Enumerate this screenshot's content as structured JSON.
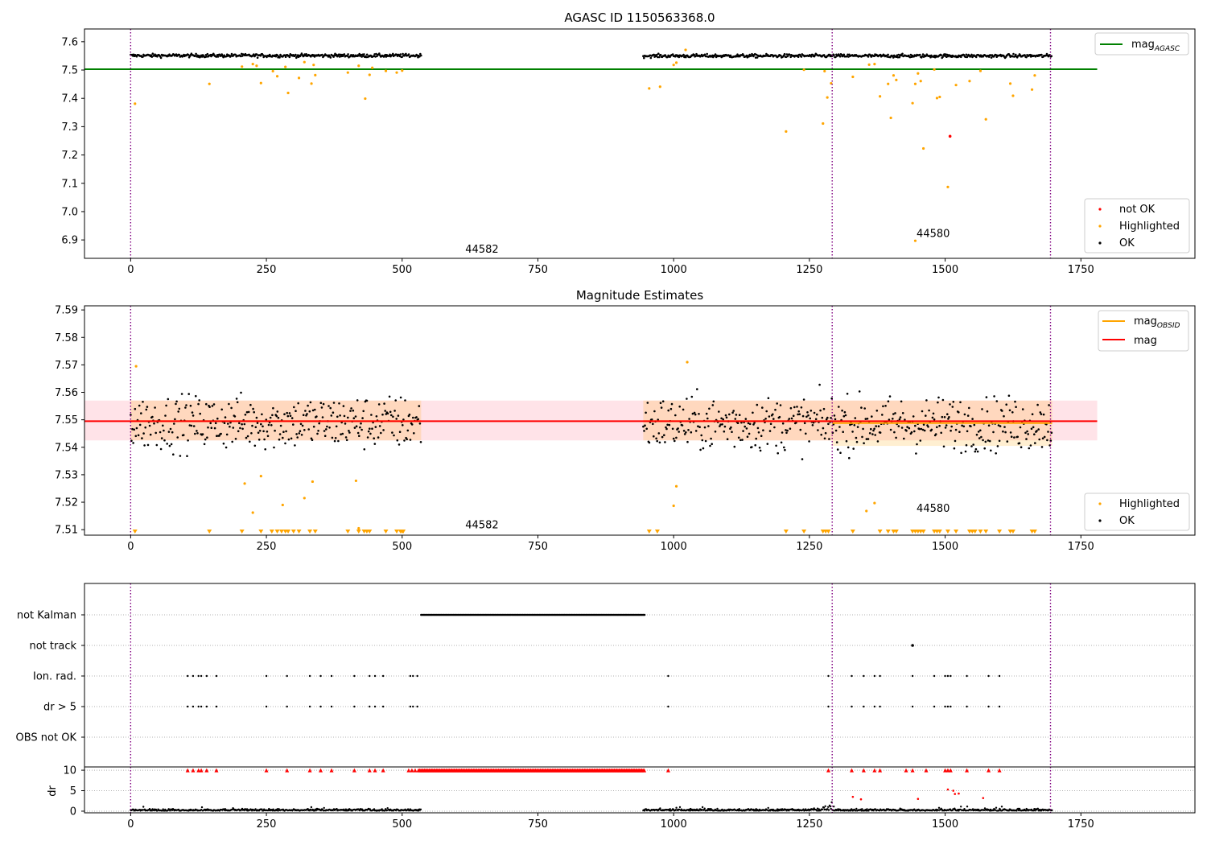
{
  "chart_data": [
    {
      "type": "scatter",
      "title": "AGASC ID 1150563368.0",
      "xlim": [
        -85,
        1960
      ],
      "ylim": [
        6.835,
        7.645
      ],
      "x_ticks": [
        0,
        250,
        500,
        750,
        1000,
        1250,
        1500,
        1750
      ],
      "y_ticks": [
        6.9,
        7.0,
        7.1,
        7.2,
        7.3,
        7.4,
        7.5,
        7.6
      ],
      "x_tick_labels": [
        "0",
        "250",
        "500",
        "750",
        "1000",
        "1250",
        "1500",
        "1750"
      ],
      "y_tick_labels": [
        "6.9",
        "7.0",
        "7.1",
        "7.2",
        "7.3",
        "7.4",
        "7.5",
        "7.6"
      ],
      "legend_upper": {
        "entries": [
          {
            "name": "mag",
            "subscript": "AGASC",
            "color": "#008000"
          }
        ],
        "placement": "top-right"
      },
      "legend_lower": {
        "entries": [
          {
            "name": "not OK",
            "color": "#ff0000"
          },
          {
            "name": "Highlighted",
            "color": "#ffa500"
          },
          {
            "name": "OK",
            "color": "#000000"
          }
        ],
        "placement": "bottom-right"
      },
      "lines": [
        {
          "name": "mag AGASC",
          "y": 7.503,
          "x_range": [
            -85,
            1780
          ],
          "color": "#008000"
        }
      ],
      "vlines": [
        0,
        1292,
        1694
      ],
      "annotations": [
        {
          "text": "44582",
          "x": 647,
          "y": 6.855
        },
        {
          "text": "44580",
          "x": 1478,
          "y": 6.91
        }
      ],
      "ok_segments": [
        {
          "x_start": 0,
          "x_end": 535,
          "center": 7.551,
          "spread": 0.006
        },
        {
          "x_start": 944,
          "x_end": 1697,
          "center": 7.55,
          "spread": 0.006
        }
      ],
      "highlighted": [
        [
          8,
          7.381
        ],
        [
          145,
          7.451
        ],
        [
          205,
          7.512
        ],
        [
          225,
          7.521
        ],
        [
          232,
          7.515
        ],
        [
          240,
          7.454
        ],
        [
          262,
          7.496
        ],
        [
          270,
          7.478
        ],
        [
          285,
          7.511
        ],
        [
          290,
          7.419
        ],
        [
          310,
          7.472
        ],
        [
          320,
          7.528
        ],
        [
          333,
          7.452
        ],
        [
          337,
          7.518
        ],
        [
          340,
          7.482
        ],
        [
          400,
          7.491
        ],
        [
          420,
          7.515
        ],
        [
          432,
          7.399
        ],
        [
          440,
          7.483
        ],
        [
          445,
          7.508
        ],
        [
          470,
          7.497
        ],
        [
          490,
          7.491
        ],
        [
          500,
          7.498
        ],
        [
          955,
          7.435
        ],
        [
          975,
          7.441
        ],
        [
          1000,
          7.518
        ],
        [
          1005,
          7.526
        ],
        [
          1022,
          7.571
        ],
        [
          1207,
          7.283
        ],
        [
          1240,
          7.501
        ],
        [
          1275,
          7.311
        ],
        [
          1278,
          7.496
        ],
        [
          1283,
          7.403
        ],
        [
          1290,
          7.453
        ],
        [
          1330,
          7.476
        ],
        [
          1360,
          7.519
        ],
        [
          1370,
          7.521
        ],
        [
          1380,
          7.407
        ],
        [
          1395,
          7.451
        ],
        [
          1400,
          7.331
        ],
        [
          1405,
          7.481
        ],
        [
          1410,
          7.465
        ],
        [
          1440,
          7.383
        ],
        [
          1445,
          7.451
        ],
        [
          1450,
          7.488
        ],
        [
          1455,
          7.461
        ],
        [
          1460,
          7.223
        ],
        [
          1480,
          7.502
        ],
        [
          1485,
          7.401
        ],
        [
          1490,
          7.405
        ],
        [
          1505,
          7.087
        ],
        [
          1520,
          7.447
        ],
        [
          1545,
          7.461
        ],
        [
          1565,
          7.497
        ],
        [
          1575,
          7.326
        ],
        [
          1620,
          7.452
        ],
        [
          1625,
          7.409
        ],
        [
          1660,
          7.431
        ],
        [
          1665,
          7.481
        ],
        [
          1445,
          6.897
        ]
      ],
      "not_ok": [
        [
          1509,
          7.266
        ]
      ]
    },
    {
      "type": "scatter",
      "title": "Magnitude Estimates",
      "xlim": [
        -85,
        1960
      ],
      "ylim": [
        7.508,
        7.5915
      ],
      "x_ticks": [
        0,
        250,
        500,
        750,
        1000,
        1250,
        1500,
        1750
      ],
      "y_ticks": [
        7.51,
        7.52,
        7.53,
        7.54,
        7.55,
        7.56,
        7.57,
        7.58,
        7.59
      ],
      "x_tick_labels": [
        "0",
        "250",
        "500",
        "750",
        "1000",
        "1250",
        "1500",
        "1750"
      ],
      "y_tick_labels": [
        "7.51",
        "7.52",
        "7.53",
        "7.54",
        "7.55",
        "7.56",
        "7.57",
        "7.58",
        "7.59"
      ],
      "legend_upper": {
        "entries": [
          {
            "name": "mag",
            "subscript": "OBSID",
            "color": "#ffa500"
          },
          {
            "name": "mag",
            "subscript": "",
            "color": "#ff0000"
          }
        ],
        "placement": "top-right"
      },
      "legend_lower": {
        "entries": [
          {
            "name": "Highlighted",
            "color": "#ffa500"
          },
          {
            "name": "OK",
            "color": "#000000"
          }
        ],
        "placement": "bottom-right"
      },
      "mag_line": {
        "y": 7.5495,
        "x_range": [
          -85,
          1780
        ],
        "color": "#ff0000"
      },
      "mag_band": {
        "y_low": 7.5425,
        "y_high": 7.557,
        "x_range": [
          -85,
          1780
        ],
        "color": "#ffc0cb"
      },
      "obsid_segments": [
        {
          "x_start": 0,
          "x_end": 535,
          "y": 7.5495,
          "y_low": 7.5425,
          "y_high": 7.557
        },
        {
          "x_start": 944,
          "x_end": 1292,
          "y": 7.5495,
          "y_low": 7.5425,
          "y_high": 7.557
        },
        {
          "x_start": 1292,
          "x_end": 1697,
          "y": 7.5488,
          "y_low": 7.5405,
          "y_high": 7.557
        }
      ],
      "vlines": [
        0,
        1292,
        1694
      ],
      "annotations": [
        {
          "text": "44582",
          "x": 647,
          "y": 7.5105
        },
        {
          "text": "44580",
          "x": 1478,
          "y": 7.5165
        }
      ],
      "ok_segments": [
        {
          "x_start": 0,
          "x_end": 535,
          "center": 7.549,
          "spread": 0.0065
        },
        {
          "x_start": 944,
          "x_end": 1697,
          "center": 7.5485,
          "spread": 0.0065
        }
      ],
      "highlighted": [
        [
          10,
          7.5695
        ],
        [
          210,
          7.5268
        ],
        [
          240,
          7.5295
        ],
        [
          225,
          7.5162
        ],
        [
          280,
          7.519
        ],
        [
          320,
          7.5215
        ],
        [
          335,
          7.5275
        ],
        [
          415,
          7.5278
        ],
        [
          420,
          7.5105
        ],
        [
          1000,
          7.5187
        ],
        [
          1005,
          7.5258
        ],
        [
          1025,
          7.571
        ],
        [
          1355,
          7.5168
        ],
        [
          1370,
          7.5197
        ]
      ],
      "highlighted_floor": [
        8,
        145,
        205,
        240,
        260,
        270,
        278,
        285,
        290,
        300,
        310,
        330,
        340,
        400,
        420,
        430,
        435,
        440,
        470,
        490,
        497,
        500,
        502,
        955,
        970,
        1207,
        1240,
        1275,
        1280,
        1285,
        1330,
        1380,
        1395,
        1405,
        1410,
        1440,
        1445,
        1450,
        1455,
        1460,
        1480,
        1485,
        1490,
        1505,
        1520,
        1545,
        1550,
        1555,
        1565,
        1575,
        1600,
        1620,
        1625,
        1660,
        1665
      ]
    },
    {
      "type": "scatter",
      "title": "",
      "xlim": [
        -85,
        1960
      ],
      "x_ticks": [
        0,
        250,
        500,
        750,
        1000,
        1250,
        1500,
        1750
      ],
      "x_tick_labels": [
        "0",
        "250",
        "500",
        "750",
        "1000",
        "1250",
        "1500",
        "1750"
      ],
      "flag_labels": [
        "not Kalman",
        "not track",
        "Ion. rad.",
        "dr > 5",
        "OBS not OK"
      ],
      "flags": {
        "not Kalman": [
          [
            535,
            948
          ]
        ],
        "not track": [
          1440
        ],
        "Ion. rad.": [
          105,
          115,
          125,
          130,
          140,
          158,
          250,
          288,
          330,
          350,
          370,
          412,
          440,
          450,
          465,
          515,
          520,
          528,
          990,
          1285,
          1328,
          1350,
          1370,
          1380,
          1440,
          1480,
          1500,
          1505,
          1510,
          1540,
          1580,
          1600
        ],
        "dr > 5": [
          105,
          115,
          125,
          130,
          140,
          158,
          250,
          288,
          330,
          350,
          370,
          412,
          440,
          450,
          465,
          515,
          520,
          528,
          990,
          1285,
          1328,
          1350,
          1370,
          1380,
          1440,
          1480,
          1500,
          1505,
          1510,
          1540,
          1580,
          1600
        ],
        "OBS not OK": []
      },
      "dr_ylim": [
        -0.4,
        10.8
      ],
      "dr_ticks": [
        0,
        5,
        10
      ],
      "dr_tick_labels": [
        "0",
        "5",
        "10"
      ],
      "dr_ylabel": "dr",
      "dr_clipped": [
        105,
        115,
        125,
        130,
        140,
        158,
        250,
        288,
        330,
        350,
        370,
        412,
        440,
        450,
        465,
        512,
        518,
        524,
        990,
        1285,
        1328,
        1350,
        1370,
        1380,
        1428,
        1440,
        1465,
        1500,
        1505,
        1510,
        1540,
        1580,
        1600
      ],
      "dr_clipped_range": [
        530,
        948
      ],
      "dr_high_points": [
        [
          1330,
          3.5
        ],
        [
          1345,
          2.9
        ],
        [
          1450,
          3.0
        ],
        [
          1505,
          5.3
        ],
        [
          1515,
          5.0
        ],
        [
          1518,
          4.2
        ],
        [
          1525,
          4.3
        ],
        [
          1570,
          3.2
        ]
      ],
      "vlines": [
        0,
        1292,
        1694
      ]
    }
  ]
}
